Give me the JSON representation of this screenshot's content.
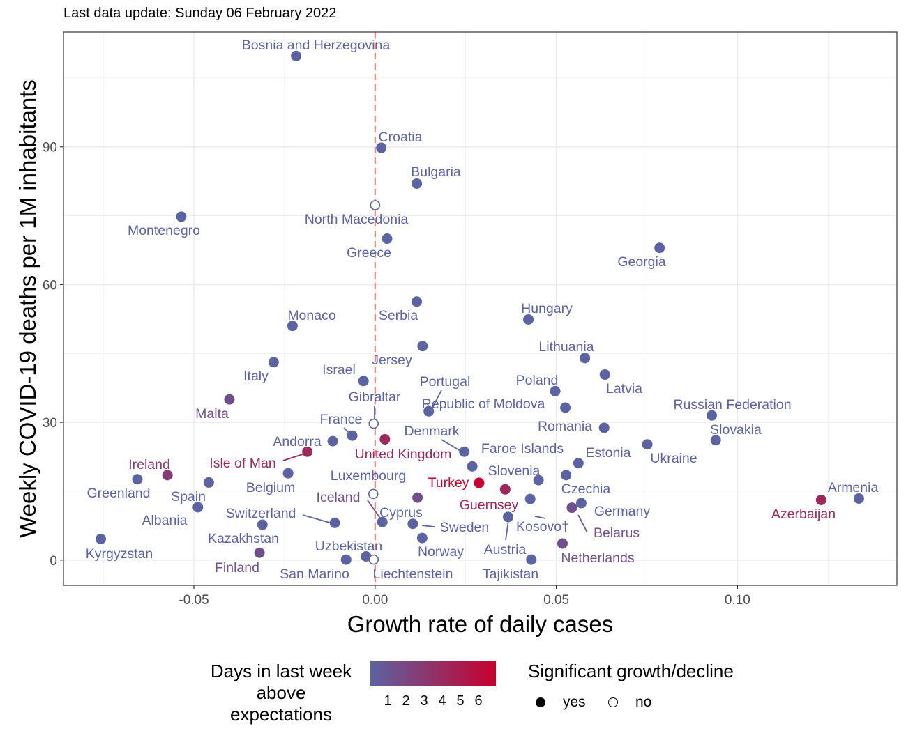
{
  "subtitle": "Last data update: Sunday 06 February 2022",
  "chart_data": {
    "type": "scatter",
    "xlabel": "Growth rate of daily cases",
    "ylabel": "Weekly COVID-19 deaths per 1M inhabitants",
    "xlim": [
      -0.086,
      0.144
    ],
    "ylim": [
      -5.5,
      115
    ],
    "x_ticks": [
      -0.05,
      0.0,
      0.05,
      0.1
    ],
    "x_tick_labels": [
      "-0.05",
      "0.00",
      "0.05",
      "0.10"
    ],
    "y_ticks": [
      0,
      30,
      60,
      90
    ],
    "y_tick_labels": [
      "0",
      "30",
      "60",
      "90"
    ],
    "grid": true,
    "reference_line": {
      "x": 0,
      "color": "#f8766d",
      "style": "dashed"
    },
    "points": [
      {
        "name": "Bosnia and Herzegovina",
        "x": -0.0218,
        "y": 109.8,
        "days": 1,
        "significant": true
      },
      {
        "name": "Croatia",
        "x": 0.0017,
        "y": 89.8,
        "days": 1,
        "significant": true
      },
      {
        "name": "Bulgaria",
        "x": 0.0115,
        "y": 82.0,
        "days": 1,
        "significant": true
      },
      {
        "name": "Montenegro",
        "x": -0.0535,
        "y": 74.8,
        "days": 1,
        "significant": true
      },
      {
        "name": "North Macedonia",
        "x": 0.0,
        "y": 77.3,
        "days": 1,
        "significant": false
      },
      {
        "name": "Greece",
        "x": 0.0033,
        "y": 70.0,
        "days": 1,
        "significant": true
      },
      {
        "name": "Georgia",
        "x": 0.0785,
        "y": 68.0,
        "days": 1,
        "significant": true
      },
      {
        "name": "Serbia",
        "x": 0.0115,
        "y": 56.3,
        "days": 1,
        "significant": true
      },
      {
        "name": "Hungary",
        "x": 0.0423,
        "y": 52.4,
        "days": 1,
        "significant": true
      },
      {
        "name": "Monaco",
        "x": -0.0228,
        "y": 51.0,
        "days": 1,
        "significant": true
      },
      {
        "name": "Jersey",
        "x": 0.0131,
        "y": 46.6,
        "days": 1,
        "significant": true
      },
      {
        "name": "Lithuania",
        "x": 0.0579,
        "y": 44.0,
        "days": 1,
        "significant": true
      },
      {
        "name": "Italy",
        "x": -0.028,
        "y": 43.1,
        "days": 1,
        "significant": true
      },
      {
        "name": "Latvia",
        "x": 0.0634,
        "y": 40.4,
        "days": 1,
        "significant": true
      },
      {
        "name": "Israel",
        "x": -0.0032,
        "y": 39.0,
        "days": 1,
        "significant": true
      },
      {
        "name": "Poland",
        "x": 0.0497,
        "y": 36.8,
        "days": 1,
        "significant": true
      },
      {
        "name": "Malta",
        "x": -0.0402,
        "y": 35.0,
        "days": 2,
        "significant": true
      },
      {
        "name": "Republic of Moldova",
        "x": 0.0525,
        "y": 33.2,
        "days": 1,
        "significant": true
      },
      {
        "name": "Portugal",
        "x": 0.0148,
        "y": 32.4,
        "days": 1,
        "significant": true
      },
      {
        "name": "Russian Federation",
        "x": 0.0929,
        "y": 31.5,
        "days": 1,
        "significant": true
      },
      {
        "name": "Gibraltar",
        "x": -0.0004,
        "y": 29.7,
        "days": 1,
        "significant": false
      },
      {
        "name": "Romania",
        "x": 0.0632,
        "y": 28.8,
        "days": 1,
        "significant": true
      },
      {
        "name": "France",
        "x": -0.0063,
        "y": 27.1,
        "days": 1,
        "significant": true
      },
      {
        "name": "United Kingdom",
        "x": 0.0027,
        "y": 26.3,
        "days": 4,
        "significant": true
      },
      {
        "name": "Slovakia",
        "x": 0.094,
        "y": 26.1,
        "days": 1,
        "significant": true
      },
      {
        "name": "Andorra",
        "x": -0.0117,
        "y": 25.9,
        "days": 1,
        "significant": true
      },
      {
        "name": "Ukraine",
        "x": 0.0751,
        "y": 25.2,
        "days": 1,
        "significant": true
      },
      {
        "name": "Isle of Man",
        "x": -0.0187,
        "y": 23.6,
        "days": 4,
        "significant": true
      },
      {
        "name": "Denmark",
        "x": 0.0246,
        "y": 23.6,
        "days": 1,
        "significant": true
      },
      {
        "name": "Estonia",
        "x": 0.0561,
        "y": 21.1,
        "days": 1,
        "significant": true
      },
      {
        "name": "Faroe Islands",
        "x": 0.0268,
        "y": 20.4,
        "days": 1,
        "significant": true
      },
      {
        "name": "Belgium",
        "x": -0.024,
        "y": 18.9,
        "days": 1,
        "significant": true
      },
      {
        "name": "Czechia",
        "x": 0.0527,
        "y": 18.5,
        "days": 1,
        "significant": true
      },
      {
        "name": "Ireland",
        "x": -0.0573,
        "y": 18.5,
        "days": 3,
        "significant": true
      },
      {
        "name": "Greenland",
        "x": -0.0656,
        "y": 17.6,
        "days": 1,
        "significant": true
      },
      {
        "name": "Slovenia",
        "x": 0.0451,
        "y": 17.4,
        "days": 1,
        "significant": true
      },
      {
        "name": "Spain",
        "x": -0.0459,
        "y": 16.9,
        "days": 1,
        "significant": true
      },
      {
        "name": "Turkey",
        "x": 0.0287,
        "y": 16.8,
        "days": 6,
        "significant": true
      },
      {
        "name": "Guernsey",
        "x": 0.0359,
        "y": 15.4,
        "days": 4,
        "significant": true
      },
      {
        "name": "Luxembourg",
        "x": -0.0005,
        "y": 14.4,
        "days": 1,
        "significant": false
      },
      {
        "name": "Iceland",
        "x": 0.0117,
        "y": 13.6,
        "days": 2,
        "significant": true
      },
      {
        "name": "Armenia",
        "x": 0.1335,
        "y": 13.4,
        "days": 1,
        "significant": true
      },
      {
        "name": "Kosovo†",
        "x": 0.0428,
        "y": 13.3,
        "days": 1,
        "significant": true
      },
      {
        "name": "Azerbaijan",
        "x": 0.1231,
        "y": 13.1,
        "days": 4,
        "significant": true
      },
      {
        "name": "Germany",
        "x": 0.0569,
        "y": 12.4,
        "days": 1,
        "significant": true
      },
      {
        "name": "Albania",
        "x": -0.0489,
        "y": 11.5,
        "days": 1,
        "significant": true
      },
      {
        "name": "Belarus",
        "x": 0.0543,
        "y": 11.4,
        "days": 2,
        "significant": true
      },
      {
        "name": "Austria",
        "x": 0.0367,
        "y": 9.4,
        "days": 1,
        "significant": true
      },
      {
        "name": "Cyprus",
        "x": 0.002,
        "y": 8.3,
        "days": 1,
        "significant": true
      },
      {
        "name": "Switzerland",
        "x": -0.0111,
        "y": 8.1,
        "days": 1,
        "significant": true
      },
      {
        "name": "Sweden",
        "x": 0.0104,
        "y": 7.9,
        "days": 1,
        "significant": true
      },
      {
        "name": "Kazakhstan",
        "x": -0.0311,
        "y": 7.7,
        "days": 1,
        "significant": true
      },
      {
        "name": "Norway",
        "x": 0.013,
        "y": 4.8,
        "days": 1,
        "significant": true
      },
      {
        "name": "Kyrgyzstan",
        "x": -0.0757,
        "y": 4.6,
        "days": 1,
        "significant": true
      },
      {
        "name": "Netherlands",
        "x": 0.0517,
        "y": 3.6,
        "days": 2,
        "significant": true
      },
      {
        "name": "Finland",
        "x": -0.0319,
        "y": 1.6,
        "days": 2,
        "significant": true
      },
      {
        "name": "Uzbekistan",
        "x": -0.0025,
        "y": 0.8,
        "days": 1,
        "significant": true
      },
      {
        "name": "San Marino",
        "x": -0.008,
        "y": 0.1,
        "days": 1,
        "significant": true
      },
      {
        "name": "Liechtenstein",
        "x": -0.0004,
        "y": 0.1,
        "days": 1,
        "significant": false
      },
      {
        "name": "Tajikistan",
        "x": 0.0431,
        "y": 0.1,
        "days": 1,
        "significant": true
      }
    ],
    "legend_color": {
      "title_lines": [
        "Days in last week",
        "above",
        "expectations"
      ],
      "ticks": [
        "1",
        "2",
        "3",
        "4",
        "5",
        "6"
      ],
      "low_color": "#5b63a2",
      "high_color": "#c8002e",
      "placement": "bottom"
    },
    "legend_shape": {
      "title": "Significant growth/decline",
      "keys": [
        {
          "label": "yes",
          "filled": true
        },
        {
          "label": "no",
          "filled": false
        }
      ]
    }
  }
}
